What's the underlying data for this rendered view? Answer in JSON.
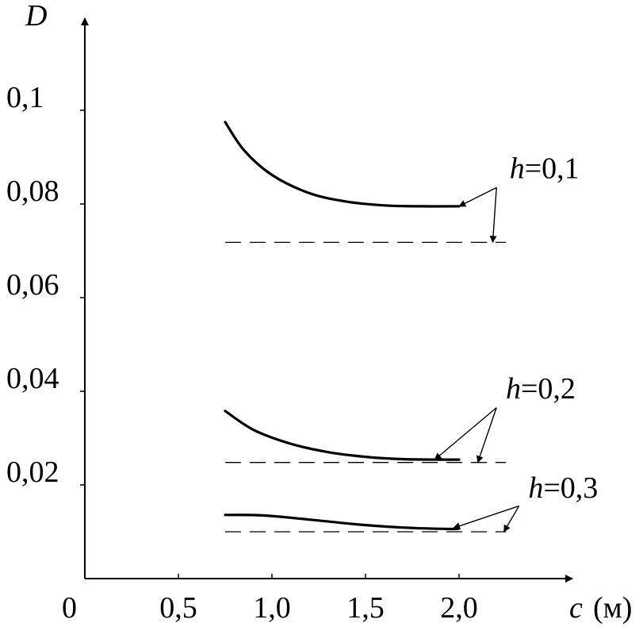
{
  "chart_data": {
    "type": "line",
    "xlabel": "c",
    "xunit": "(м)",
    "ylabel": "D",
    "origin_label": "0",
    "xlim": [
      0,
      2.6
    ],
    "ylim": [
      0,
      0.118
    ],
    "xticks": [
      {
        "value": 0.5,
        "label": "0,5"
      },
      {
        "value": 1.0,
        "label": "1,0"
      },
      {
        "value": 1.5,
        "label": "1,5"
      },
      {
        "value": 2.0,
        "label": "2,0"
      }
    ],
    "yticks": [
      {
        "value": 0.02,
        "label": "0,02"
      },
      {
        "value": 0.04,
        "label": "0,04"
      },
      {
        "value": 0.06,
        "label": "0,06"
      },
      {
        "value": 0.08,
        "label": "0,08"
      },
      {
        "value": 0.1,
        "label": "0,1"
      }
    ],
    "grid": false,
    "legend": "none",
    "series": [
      {
        "h": "0,1",
        "style": "solid",
        "x": [
          0.75,
          0.85,
          1.0,
          1.2,
          1.4,
          1.6,
          1.8,
          2.0
        ],
        "y": [
          0.0975,
          0.0915,
          0.0862,
          0.0823,
          0.0805,
          0.0797,
          0.0795,
          0.0795
        ]
      },
      {
        "h": "0,1",
        "style": "dashed",
        "x": [
          0.75,
          2.25
        ],
        "y": [
          0.0718,
          0.0718
        ]
      },
      {
        "h": "0,2",
        "style": "solid",
        "x": [
          0.75,
          0.9,
          1.1,
          1.3,
          1.5,
          1.7,
          1.9,
          2.0
        ],
        "y": [
          0.0358,
          0.0318,
          0.0288,
          0.027,
          0.026,
          0.0255,
          0.0254,
          0.0254
        ]
      },
      {
        "h": "0,2",
        "style": "dashed",
        "x": [
          0.75,
          2.25
        ],
        "y": [
          0.0248,
          0.0248
        ]
      },
      {
        "h": "0,3",
        "style": "solid",
        "x": [
          0.75,
          0.95,
          1.2,
          1.45,
          1.7,
          1.95,
          2.0
        ],
        "y": [
          0.0136,
          0.0135,
          0.0126,
          0.0116,
          0.0109,
          0.0106,
          0.0107
        ]
      },
      {
        "h": "0,3",
        "style": "dashed",
        "x": [
          0.75,
          2.25
        ],
        "y": [
          0.01,
          0.01
        ]
      }
    ],
    "annotations": [
      {
        "name": "h",
        "eq": "=0,1",
        "text_x": 2.27,
        "text_y": 0.0855,
        "pivot_x": 2.2,
        "pivot_y": 0.0835,
        "targets": [
          {
            "x": 2.0,
            "y": 0.0795
          },
          {
            "x": 2.18,
            "y": 0.0718
          }
        ]
      },
      {
        "name": "h",
        "eq": "=0,2",
        "text_x": 2.25,
        "text_y": 0.0385,
        "pivot_x": 2.2,
        "pivot_y": 0.0365,
        "targets": [
          {
            "x": 1.87,
            "y": 0.0254
          },
          {
            "x": 2.1,
            "y": 0.0248
          }
        ]
      },
      {
        "name": "h",
        "eq": "=0,3",
        "text_x": 2.37,
        "text_y": 0.0173,
        "pivot_x": 2.32,
        "pivot_y": 0.0155,
        "targets": [
          {
            "x": 1.97,
            "y": 0.0108
          },
          {
            "x": 2.24,
            "y": 0.01
          }
        ]
      }
    ]
  }
}
